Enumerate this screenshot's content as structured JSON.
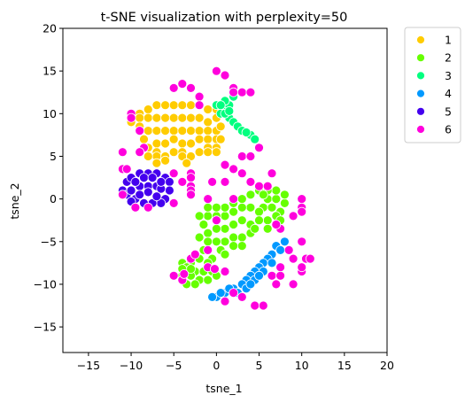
{
  "chart_data": {
    "type": "scatter",
    "title": "t-SNE visualization with perplexity=50",
    "xlabel": "tsne_1",
    "ylabel": "tsne_2",
    "xlim": [
      -18,
      20
    ],
    "ylim": [
      -18,
      20
    ],
    "xticks": [
      -15,
      -10,
      -5,
      0,
      5,
      10,
      15,
      20
    ],
    "yticks": [
      -15,
      -10,
      -5,
      0,
      5,
      10,
      15,
      20
    ],
    "xtick_labels": [
      "−15",
      "−10",
      "−5",
      "0",
      "5",
      "10",
      "15",
      "20"
    ],
    "ytick_labels": [
      "−15",
      "−10",
      "−5",
      "0",
      "5",
      "10",
      "15",
      "20"
    ],
    "grid": false,
    "legend_position": "outside-top-right",
    "series": [
      {
        "name": "1",
        "color": "#ffcc00",
        "points": [
          [
            -10,
            10
          ],
          [
            -9,
            10
          ],
          [
            -8,
            10.5
          ],
          [
            -7,
            11
          ],
          [
            -6,
            11
          ],
          [
            -5,
            11
          ],
          [
            -4,
            11
          ],
          [
            -3,
            11
          ],
          [
            -2,
            11
          ],
          [
            -1,
            10.5
          ],
          [
            0,
            10.5
          ],
          [
            -10,
            9
          ],
          [
            -9,
            9.5
          ],
          [
            -8,
            9.5
          ],
          [
            -7,
            9.5
          ],
          [
            -6,
            9.5
          ],
          [
            -5,
            9.5
          ],
          [
            -4,
            9.5
          ],
          [
            -3,
            9.5
          ],
          [
            -2,
            9.5
          ],
          [
            -1,
            9
          ],
          [
            0,
            9.5
          ],
          [
            -9,
            8.5
          ],
          [
            -8,
            8
          ],
          [
            -7,
            8
          ],
          [
            -6,
            8
          ],
          [
            -5,
            8
          ],
          [
            -4,
            8
          ],
          [
            -3,
            8
          ],
          [
            -2,
            8
          ],
          [
            -1,
            8
          ],
          [
            0,
            8
          ],
          [
            0.5,
            8.5
          ],
          [
            -8.5,
            7
          ],
          [
            -7,
            6.5
          ],
          [
            -6,
            6.5
          ],
          [
            -5,
            7
          ],
          [
            -4,
            6.5
          ],
          [
            -3,
            6.5
          ],
          [
            -2,
            7
          ],
          [
            -1,
            7
          ],
          [
            0,
            7
          ],
          [
            0.5,
            7
          ],
          [
            -8,
            6
          ],
          [
            -7,
            5.5
          ],
          [
            -5,
            5.5
          ],
          [
            -4,
            5.5
          ],
          [
            -2,
            5.5
          ],
          [
            -1,
            6
          ],
          [
            0,
            6
          ],
          [
            -1,
            5.5
          ],
          [
            0,
            5.5
          ],
          [
            -7,
            5
          ],
          [
            -6,
            5
          ],
          [
            -4,
            5
          ],
          [
            -3,
            5
          ],
          [
            -6,
            4.5
          ],
          [
            -3.5,
            4.2
          ],
          [
            -7,
            4.2
          ],
          [
            -8,
            5
          ]
        ]
      },
      {
        "name": "2",
        "color": "#66ff00",
        "points": [
          [
            6,
            0
          ],
          [
            7,
            0
          ],
          [
            8,
            -0.5
          ],
          [
            5.5,
            -1
          ],
          [
            6.5,
            -1
          ],
          [
            7.5,
            -1.5
          ],
          [
            5,
            -1.5
          ],
          [
            4,
            -1
          ],
          [
            3,
            -1
          ],
          [
            2,
            -1.5
          ],
          [
            1,
            -2
          ],
          [
            0,
            -2
          ],
          [
            -1,
            -2
          ],
          [
            -2,
            -2
          ],
          [
            7,
            -2
          ],
          [
            6,
            -2.5
          ],
          [
            5,
            -2.5
          ],
          [
            4,
            -3
          ],
          [
            3,
            -2.5
          ],
          [
            2,
            -3
          ],
          [
            1,
            -3.5
          ],
          [
            0,
            -3.5
          ],
          [
            -1,
            -4
          ],
          [
            -1.5,
            -3
          ],
          [
            4,
            -4
          ],
          [
            3,
            -4.5
          ],
          [
            2,
            -4.5
          ],
          [
            1,
            -5
          ],
          [
            0,
            -5
          ],
          [
            -1,
            -5
          ],
          [
            -2,
            -4.5
          ],
          [
            -1.5,
            -6
          ],
          [
            0.5,
            -6
          ],
          [
            -0.5,
            -7
          ],
          [
            -1,
            -7.5
          ],
          [
            -2,
            -7
          ],
          [
            -3,
            -7.5
          ],
          [
            -4,
            -7.5
          ],
          [
            -3.5,
            -8
          ],
          [
            -2.5,
            -8.5
          ],
          [
            -1.5,
            -8.5
          ],
          [
            -0.5,
            -8.5
          ],
          [
            -4,
            -9
          ],
          [
            -3,
            -9
          ],
          [
            -2,
            -9.5
          ],
          [
            -1,
            -9.5
          ],
          [
            0,
            -9
          ],
          [
            -3.5,
            -10
          ],
          [
            -2.5,
            -10
          ],
          [
            -3,
            -8.2
          ],
          [
            -4,
            -8.2
          ],
          [
            1,
            -6.5
          ],
          [
            2,
            -5.5
          ],
          [
            3,
            -5.5
          ],
          [
            4.5,
            -3.5
          ],
          [
            6,
            -3.5
          ],
          [
            7.5,
            -2.5
          ],
          [
            8,
            0.5
          ],
          [
            7,
            1
          ],
          [
            6,
            1
          ],
          [
            5,
            1
          ],
          [
            4,
            0.5
          ],
          [
            3,
            0
          ],
          [
            2,
            -0.5
          ],
          [
            1,
            -1
          ],
          [
            0,
            -1
          ],
          [
            -1,
            -1
          ],
          [
            5.5,
            0.5
          ]
        ]
      },
      {
        "name": "3",
        "color": "#00ff7f",
        "points": [
          [
            0,
            11
          ],
          [
            1,
            10.5
          ],
          [
            0.5,
            10
          ],
          [
            1.5,
            9.5
          ],
          [
            2,
            9
          ],
          [
            2.5,
            8.5
          ],
          [
            3,
            8
          ],
          [
            4,
            7.5
          ],
          [
            4.5,
            7
          ],
          [
            1,
            10
          ],
          [
            1.5,
            11
          ],
          [
            2,
            12
          ],
          [
            1,
            11.5
          ],
          [
            0.5,
            11
          ],
          [
            3.5,
            7.8
          ],
          [
            1.5,
            10.3
          ]
        ]
      },
      {
        "name": "4",
        "color": "#0099ff",
        "points": [
          [
            8,
            -5
          ],
          [
            7,
            -5.5
          ],
          [
            6.5,
            -6.5
          ],
          [
            6,
            -7
          ],
          [
            5.5,
            -7.5
          ],
          [
            5,
            -8
          ],
          [
            4.5,
            -8.5
          ],
          [
            4,
            -9
          ],
          [
            3.5,
            -9.5
          ],
          [
            3,
            -10
          ],
          [
            2,
            -10.5
          ],
          [
            1,
            -11
          ],
          [
            0,
            -11.5
          ],
          [
            -0.5,
            -11.5
          ],
          [
            7.5,
            -6
          ],
          [
            6.5,
            -7.5
          ],
          [
            5.5,
            -8.5
          ],
          [
            4.5,
            -9.5
          ],
          [
            3.5,
            -10.5
          ],
          [
            2.5,
            -11
          ],
          [
            1.5,
            -10.5
          ],
          [
            0.5,
            -11
          ],
          [
            5,
            -9
          ],
          [
            4,
            -10
          ]
        ]
      },
      {
        "name": "5",
        "color": "#4400ee",
        "points": [
          [
            -11,
            1
          ],
          [
            -10.5,
            2
          ],
          [
            -10,
            2.5
          ],
          [
            -9,
            3
          ],
          [
            -8,
            3
          ],
          [
            -7,
            3
          ],
          [
            -6,
            2.5
          ],
          [
            -5.5,
            2
          ],
          [
            -5.5,
            1
          ],
          [
            -6,
            0
          ],
          [
            -6.5,
            -0.5
          ],
          [
            -7.5,
            -0.5
          ],
          [
            -8.5,
            -0.5
          ],
          [
            -9.5,
            0
          ],
          [
            -10.5,
            0.5
          ],
          [
            -10,
            1
          ],
          [
            -9,
            1.5
          ],
          [
            -8,
            1.5
          ],
          [
            -7,
            1.5
          ],
          [
            -6.5,
            1.2
          ],
          [
            -9.5,
            2
          ],
          [
            -8.5,
            2.5
          ],
          [
            -7.5,
            2.5
          ],
          [
            -6.5,
            2
          ],
          [
            -10,
            -0.3
          ],
          [
            -9,
            0.5
          ],
          [
            -7,
            0.3
          ],
          [
            -8,
            0.8
          ]
        ]
      },
      {
        "name": "6",
        "color": "#ff00dd",
        "points": [
          [
            0,
            15
          ],
          [
            1,
            14.5
          ],
          [
            2,
            13
          ],
          [
            2,
            12.5
          ],
          [
            3,
            12.5
          ],
          [
            4,
            12.5
          ],
          [
            -5,
            13
          ],
          [
            -4,
            13.5
          ],
          [
            -3,
            13
          ],
          [
            -2,
            12
          ],
          [
            -2,
            11
          ],
          [
            -10,
            10
          ],
          [
            -10,
            9.5
          ],
          [
            -9,
            8
          ],
          [
            -8.5,
            6
          ],
          [
            -9,
            5.5
          ],
          [
            -11,
            5.5
          ],
          [
            -11,
            3.5
          ],
          [
            -10.5,
            3.5
          ],
          [
            -5,
            3
          ],
          [
            -3,
            3
          ],
          [
            -3,
            2.5
          ],
          [
            -4,
            2
          ],
          [
            -3,
            1.5
          ],
          [
            -3,
            1
          ],
          [
            -3,
            0.5
          ],
          [
            -5,
            -0.5
          ],
          [
            -0.5,
            2
          ],
          [
            2,
            3.5
          ],
          [
            3,
            3
          ],
          [
            4,
            2
          ],
          [
            5,
            1.5
          ],
          [
            6,
            1.5
          ],
          [
            3,
            5
          ],
          [
            4,
            5
          ],
          [
            5,
            6
          ],
          [
            6.5,
            3
          ],
          [
            1,
            4
          ],
          [
            1,
            2
          ],
          [
            0,
            -2.5
          ],
          [
            -1,
            0
          ],
          [
            2,
            0
          ],
          [
            -11,
            0.5
          ],
          [
            -9.5,
            -1
          ],
          [
            -8,
            -1
          ],
          [
            -5,
            -9
          ],
          [
            -4,
            -9.5
          ],
          [
            -3.8,
            -8.8
          ],
          [
            -3,
            -7
          ],
          [
            -2.5,
            -6.5
          ],
          [
            -1,
            -6
          ],
          [
            -1,
            -8
          ],
          [
            -0.2,
            -8.2
          ],
          [
            1,
            -8.5
          ],
          [
            4.5,
            -12.5
          ],
          [
            5.5,
            -12.5
          ],
          [
            3,
            -11.5
          ],
          [
            2,
            -11
          ],
          [
            1,
            -12
          ],
          [
            6.5,
            -9
          ],
          [
            7.5,
            -9
          ],
          [
            7,
            -10
          ],
          [
            7.5,
            -8
          ],
          [
            9,
            -10
          ],
          [
            10,
            -8.5
          ],
          [
            10.5,
            -7
          ],
          [
            10,
            -8
          ],
          [
            11,
            -7
          ],
          [
            9,
            -7
          ],
          [
            8.5,
            -6
          ],
          [
            10,
            -5
          ],
          [
            7.5,
            -3.5
          ],
          [
            9,
            -2
          ],
          [
            10,
            -1
          ],
          [
            10,
            0
          ],
          [
            10,
            -1.5
          ],
          [
            7,
            -3
          ]
        ]
      }
    ]
  }
}
